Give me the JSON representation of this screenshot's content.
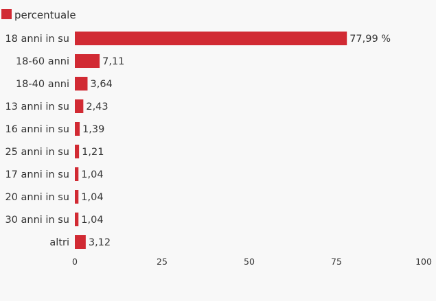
{
  "chart_data": {
    "type": "bar",
    "orientation": "horizontal",
    "legend": {
      "position": "top-left",
      "entries": [
        "percentuale"
      ]
    },
    "categories": [
      "18 anni in su",
      "18-60 anni",
      "18-40 anni",
      "13 anni in su",
      "16 anni in su",
      "25 anni in su",
      "17 anni in su",
      "20 anni in su",
      "30 anni in su",
      "altri"
    ],
    "series": [
      {
        "name": "percentuale",
        "color": "#d12a33",
        "values": [
          77.99,
          7.11,
          3.64,
          2.43,
          1.39,
          1.21,
          1.04,
          1.04,
          1.04,
          3.12
        ],
        "value_labels": [
          "77,99 %",
          "7,11",
          "3,64",
          "2,43",
          "1,39",
          "1,21",
          "1,04",
          "1,04",
          "1,04",
          "3,12"
        ]
      }
    ],
    "xlim": [
      0,
      100
    ],
    "xticks": [
      0,
      25,
      50,
      75,
      100
    ],
    "xtick_labels": [
      "0",
      "25",
      "50",
      "75",
      "100"
    ],
    "grid": false
  }
}
